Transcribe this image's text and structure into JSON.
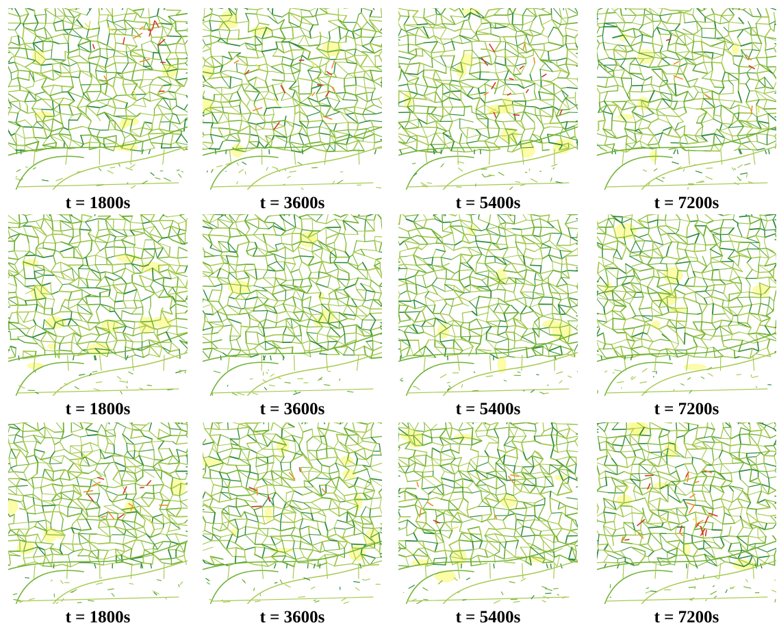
{
  "figure": {
    "rows": [
      {
        "panels": [
          {
            "caption": "t = 1800s",
            "congestion": "moderate"
          },
          {
            "caption": "t = 3600s",
            "congestion": "moderate"
          },
          {
            "caption": "t = 5400s",
            "congestion": "moderate"
          },
          {
            "caption": "t = 7200s",
            "congestion": "low"
          }
        ]
      },
      {
        "panels": [
          {
            "caption": "t = 1800s",
            "congestion": "none"
          },
          {
            "caption": "t = 3600s",
            "congestion": "none"
          },
          {
            "caption": "t = 5400s",
            "congestion": "none"
          },
          {
            "caption": "t = 7200s",
            "congestion": "none"
          }
        ]
      },
      {
        "panels": [
          {
            "caption": "t = 1800s",
            "congestion": "moderate"
          },
          {
            "caption": "t = 3600s",
            "congestion": "low"
          },
          {
            "caption": "t = 5400s",
            "congestion": "low"
          },
          {
            "caption": "t = 7200s",
            "congestion": "high"
          }
        ]
      }
    ]
  },
  "colors": {
    "road_light": "#a6c94f",
    "road_mid": "#6fb133",
    "road_dark": "#2e8b3e",
    "road_yellow": "#e6e64a",
    "road_orange": "#f08a2c",
    "road_red": "#d9302a",
    "highlight_yellow": "#fbfb8c",
    "caption": "#000000"
  }
}
